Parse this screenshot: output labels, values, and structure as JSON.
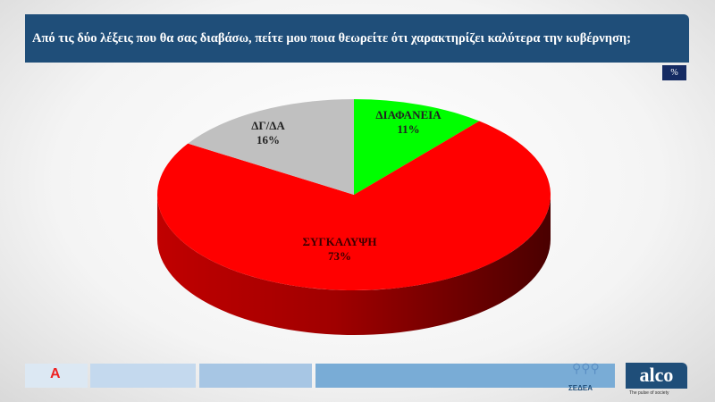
{
  "header": {
    "title": "Από τις δύο λέξεις που θα σας διαβάσω,  πείτε μου ποια θεωρείτε ότι χαρακτηρίζει καλύτερα την κυβέρνηση;",
    "unit": "%"
  },
  "chart_data": {
    "type": "pie",
    "style": "3d",
    "categories": [
      "ΔΙΑΦΑΝΕΙΑ",
      "ΣΥΓΚΑΛΥΨΗ",
      "ΔΓ/ΔΑ"
    ],
    "values": [
      11,
      73,
      16
    ],
    "labels": [
      "11%",
      "73%",
      "16%"
    ],
    "colors": [
      "#00ff00",
      "#ff0000",
      "#c0c0c0"
    ],
    "start": "top",
    "direction": "clockwise"
  },
  "footer": {
    "brand": "alco",
    "tagline": "The pulse of society",
    "partner": "ΣΕΔΕΑ",
    "channel_logo": "Α"
  }
}
